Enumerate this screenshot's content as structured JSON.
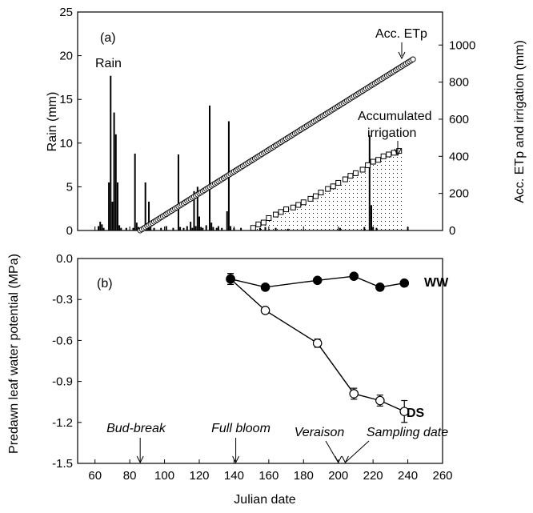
{
  "chart_data": [
    {
      "panel_label": "(a)",
      "type": "bar+line",
      "ylabel_left": "Rain (mm)",
      "ylabel_right": "Acc. ETp and irrigation (mm)",
      "xlim": [
        50,
        260
      ],
      "ylim_left": [
        0,
        25
      ],
      "ylim_right": [
        0,
        1178
      ],
      "yticks_left": [
        "0",
        "5",
        "10",
        "15",
        "20",
        "25"
      ],
      "yticks_right": [
        "0",
        "200",
        "400",
        "600",
        "800",
        "1000"
      ],
      "annotations": {
        "rain": "Rain",
        "etp": "Acc. ETp",
        "irr_line1": "Accumulated",
        "irr_line2": "irrigation"
      },
      "rain": [
        {
          "x": 62,
          "y": 0.5
        },
        {
          "x": 63,
          "y": 1.0
        },
        {
          "x": 64,
          "y": 0.7
        },
        {
          "x": 65,
          "y": 0.3
        },
        {
          "x": 68,
          "y": 5.5
        },
        {
          "x": 69,
          "y": 17.7
        },
        {
          "x": 70,
          "y": 3.3
        },
        {
          "x": 71,
          "y": 13.5
        },
        {
          "x": 72,
          "y": 11.0
        },
        {
          "x": 73,
          "y": 5.5
        },
        {
          "x": 74,
          "y": 0.6
        },
        {
          "x": 75,
          "y": 0.3
        },
        {
          "x": 78,
          "y": 0.3
        },
        {
          "x": 82,
          "y": 0.3
        },
        {
          "x": 83,
          "y": 8.8
        },
        {
          "x": 84,
          "y": 0.9
        },
        {
          "x": 85,
          "y": 0.4
        },
        {
          "x": 86,
          "y": 0.3
        },
        {
          "x": 88,
          "y": 0.5
        },
        {
          "x": 89,
          "y": 5.5
        },
        {
          "x": 90,
          "y": 0.6
        },
        {
          "x": 91,
          "y": 3.3
        },
        {
          "x": 92,
          "y": 1.0
        },
        {
          "x": 94,
          "y": 0.3
        },
        {
          "x": 98,
          "y": 0.3
        },
        {
          "x": 101,
          "y": 0.5
        },
        {
          "x": 105,
          "y": 0.3
        },
        {
          "x": 108,
          "y": 8.7
        },
        {
          "x": 109,
          "y": 0.4
        },
        {
          "x": 111,
          "y": 0.3
        },
        {
          "x": 113,
          "y": 0.5
        },
        {
          "x": 115,
          "y": 1.0
        },
        {
          "x": 116,
          "y": 0.3
        },
        {
          "x": 117,
          "y": 4.5
        },
        {
          "x": 118,
          "y": 0.5
        },
        {
          "x": 119,
          "y": 5.0
        },
        {
          "x": 120,
          "y": 1.6
        },
        {
          "x": 121,
          "y": 0.4
        },
        {
          "x": 122,
          "y": 0.3
        },
        {
          "x": 124,
          "y": 0.6
        },
        {
          "x": 126,
          "y": 14.3
        },
        {
          "x": 127,
          "y": 0.9
        },
        {
          "x": 128,
          "y": 0.4
        },
        {
          "x": 130,
          "y": 0.3
        },
        {
          "x": 131,
          "y": 0.5
        },
        {
          "x": 133,
          "y": 0.3
        },
        {
          "x": 136,
          "y": 2.2
        },
        {
          "x": 137,
          "y": 12.5
        },
        {
          "x": 138,
          "y": 0.5
        },
        {
          "x": 140,
          "y": 0.3
        },
        {
          "x": 144,
          "y": 0.3
        },
        {
          "x": 150,
          "y": 0.4
        },
        {
          "x": 155,
          "y": 0.3
        },
        {
          "x": 158,
          "y": 0.4
        },
        {
          "x": 164,
          "y": 0.3
        },
        {
          "x": 171,
          "y": 0.2
        },
        {
          "x": 201,
          "y": 0.3
        },
        {
          "x": 215,
          "y": 0.4
        },
        {
          "x": 218,
          "y": 10.9
        },
        {
          "x": 219,
          "y": 2.9
        },
        {
          "x": 220,
          "y": 0.4
        },
        {
          "x": 222,
          "y": 0.3
        },
        {
          "x": 240,
          "y": 0.4
        }
      ],
      "acc_etp": {
        "x_start": 86,
        "x_end": 243,
        "step": 1,
        "y_start": 0,
        "y_end": 923
      },
      "acc_irrigation": [
        {
          "x": 151,
          "y": 14
        },
        {
          "x": 154,
          "y": 33
        },
        {
          "x": 157,
          "y": 43
        },
        {
          "x": 160,
          "y": 67
        },
        {
          "x": 164,
          "y": 86
        },
        {
          "x": 167,
          "y": 100
        },
        {
          "x": 170,
          "y": 114
        },
        {
          "x": 174,
          "y": 124
        },
        {
          "x": 177,
          "y": 138
        },
        {
          "x": 180,
          "y": 152
        },
        {
          "x": 184,
          "y": 171
        },
        {
          "x": 187,
          "y": 185
        },
        {
          "x": 190,
          "y": 205
        },
        {
          "x": 194,
          "y": 224
        },
        {
          "x": 197,
          "y": 238
        },
        {
          "x": 200,
          "y": 257
        },
        {
          "x": 204,
          "y": 276
        },
        {
          "x": 207,
          "y": 295
        },
        {
          "x": 210,
          "y": 309
        },
        {
          "x": 214,
          "y": 328
        },
        {
          "x": 217,
          "y": 352
        },
        {
          "x": 220,
          "y": 371
        },
        {
          "x": 223,
          "y": 381
        },
        {
          "x": 226,
          "y": 400
        },
        {
          "x": 229,
          "y": 410
        },
        {
          "x": 232,
          "y": 419
        },
        {
          "x": 235,
          "y": 429
        }
      ]
    },
    {
      "panel_label": "(b)",
      "type": "line",
      "ylabel": "Predawn leaf water potential (MPa)",
      "xlabel": "Julian date",
      "xlim": [
        50,
        260
      ],
      "ylim": [
        -1.5,
        0.0
      ],
      "xticks": [
        "60",
        "80",
        "100",
        "120",
        "140",
        "160",
        "180",
        "200",
        "220",
        "240",
        "260"
      ],
      "yticks": [
        "0.0",
        "-0.3",
        "-0.6",
        "-0.9",
        "-1.2",
        "-1.5"
      ],
      "series": [
        {
          "name": "WW",
          "marker": "filled-circle",
          "points": [
            {
              "x": 138,
              "y": -0.15,
              "err": 0.04
            },
            {
              "x": 158,
              "y": -0.21,
              "err": 0
            },
            {
              "x": 188,
              "y": -0.16,
              "err": 0
            },
            {
              "x": 209,
              "y": -0.13,
              "err": 0
            },
            {
              "x": 224,
              "y": -0.21,
              "err": 0
            },
            {
              "x": 238,
              "y": -0.18,
              "err": 0.02
            }
          ]
        },
        {
          "name": "DS",
          "marker": "open-circle",
          "points": [
            {
              "x": 138,
              "y": -0.15,
              "err": 0.04
            },
            {
              "x": 158,
              "y": -0.38,
              "err": 0
            },
            {
              "x": 188,
              "y": -0.62,
              "err": 0.03
            },
            {
              "x": 209,
              "y": -0.99,
              "err": 0.04
            },
            {
              "x": 224,
              "y": -1.04,
              "err": 0.04
            },
            {
              "x": 238,
              "y": -1.12,
              "err": 0.08
            }
          ]
        }
      ],
      "events": [
        {
          "label": "Bud-break",
          "x": 86
        },
        {
          "label": "Full bloom",
          "x": 141
        },
        {
          "label": "Veraison",
          "x": 200
        },
        {
          "label": "Sampling date",
          "x": 204
        }
      ]
    }
  ]
}
